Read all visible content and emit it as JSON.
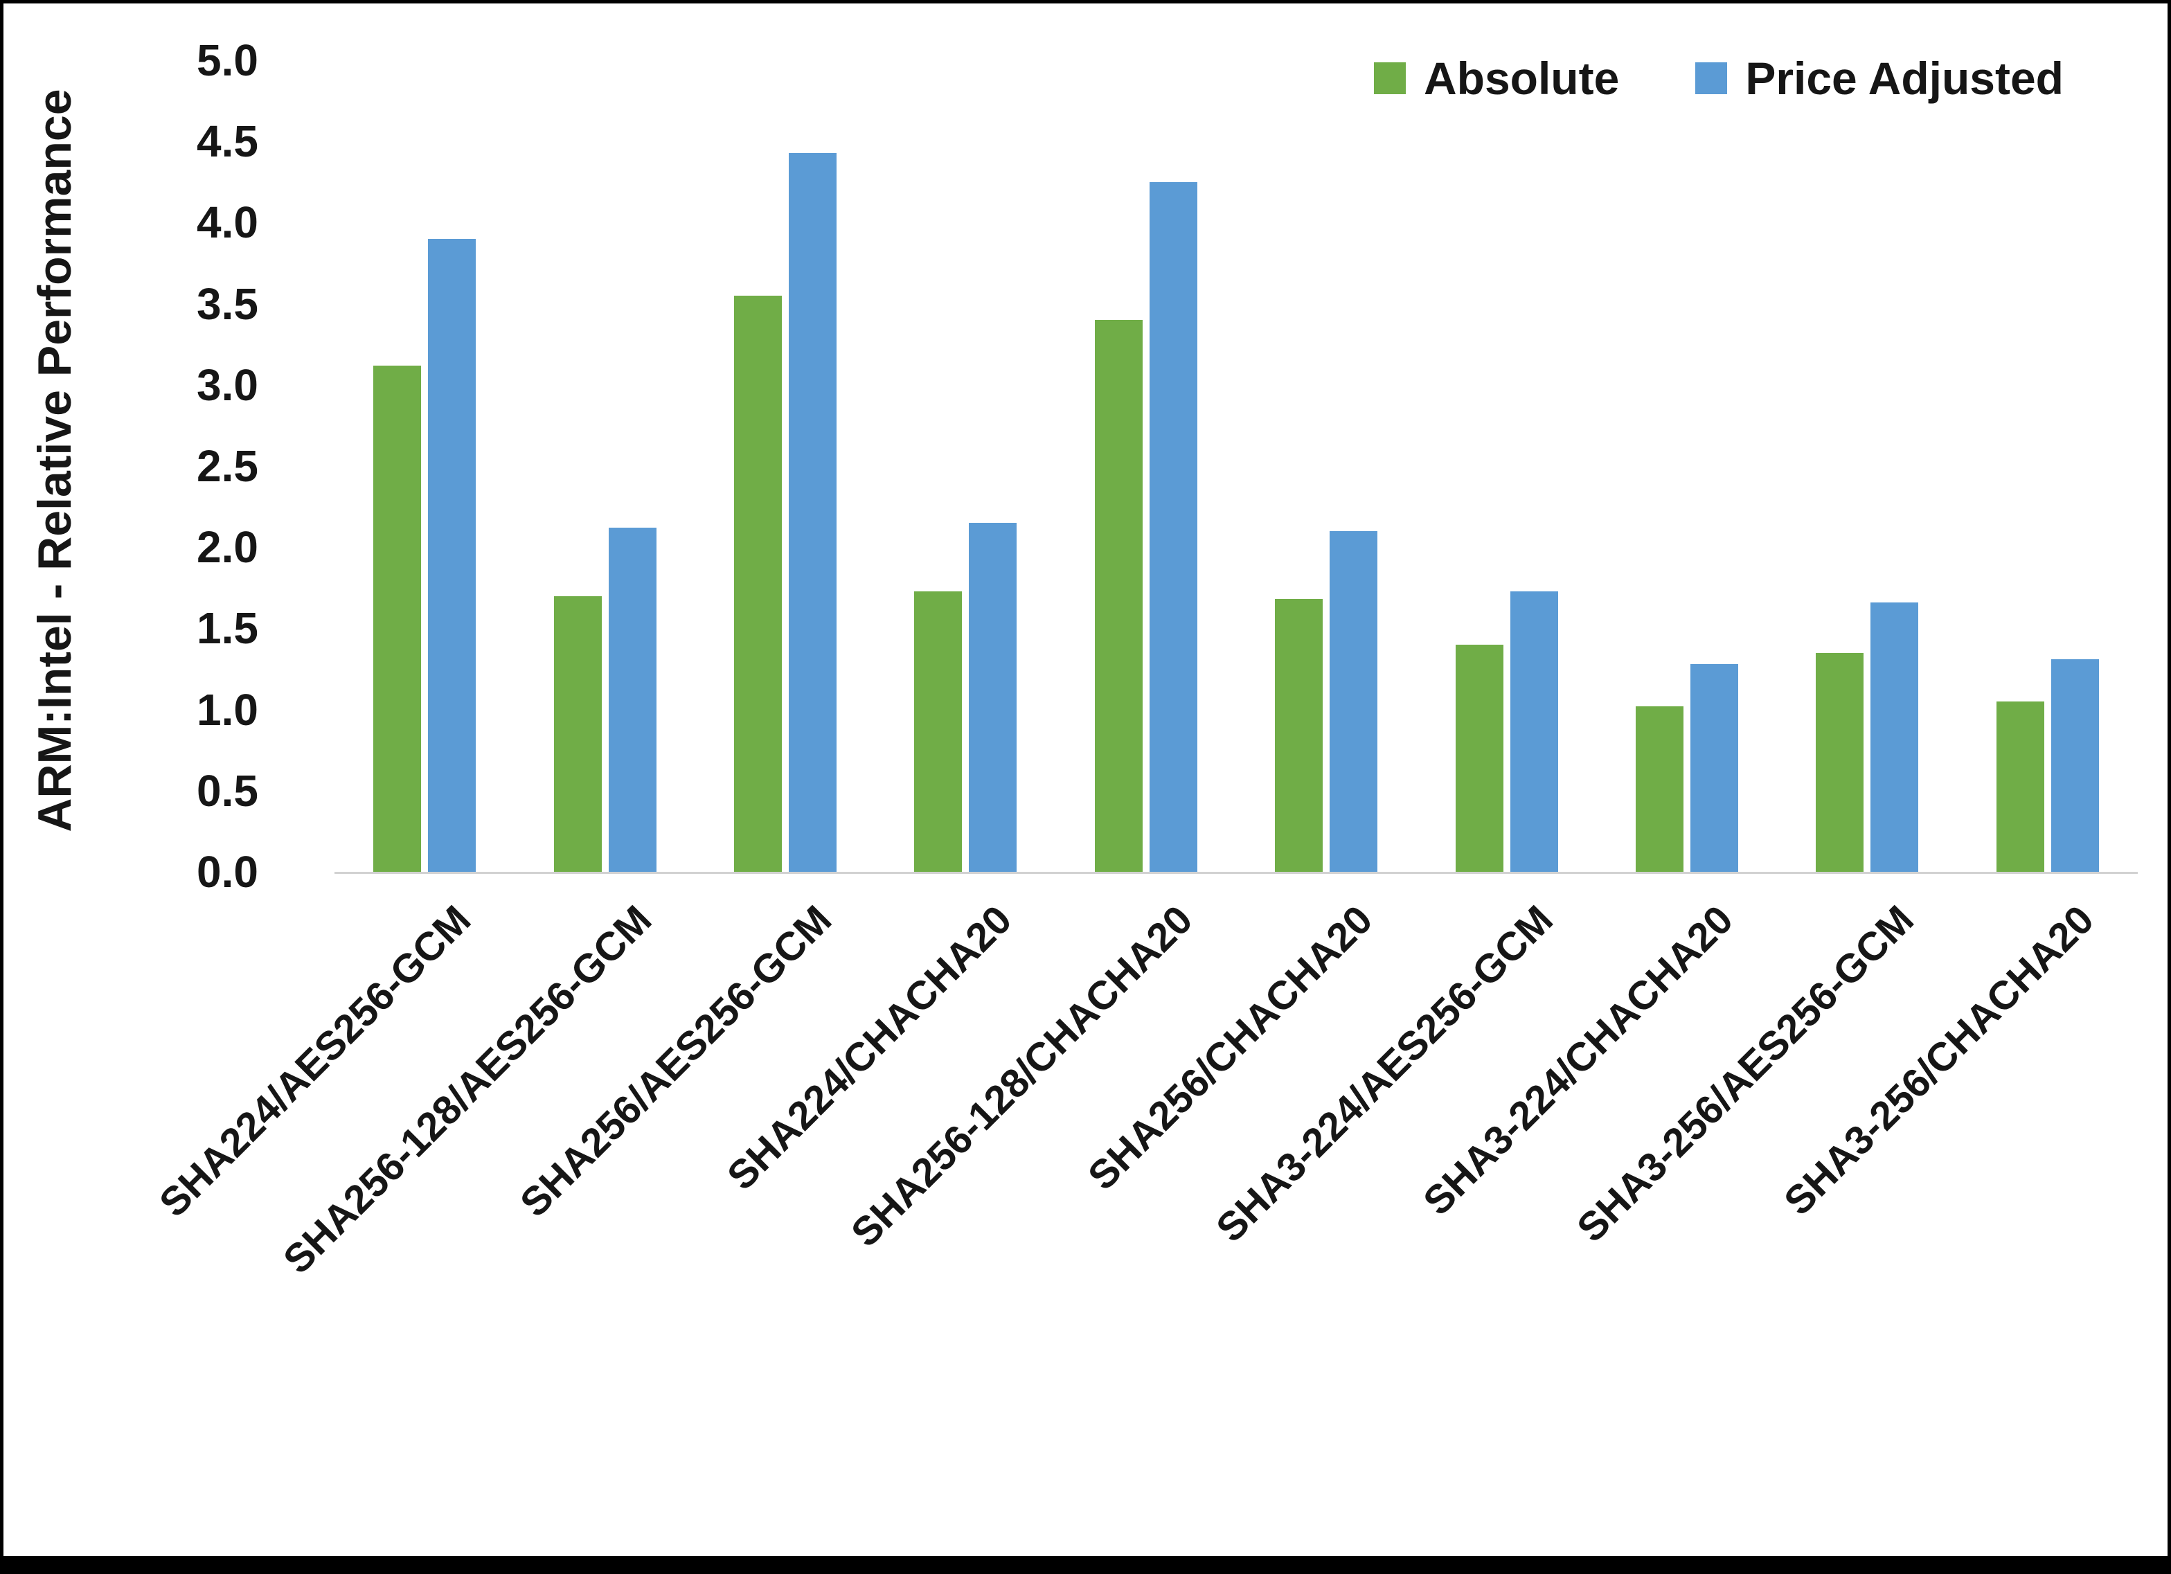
{
  "chart_data": {
    "type": "bar",
    "title": "",
    "xlabel": "",
    "ylabel": "ARM:Intel - Relative Performance",
    "ylim": [
      0,
      5
    ],
    "ytick_step": 0.5,
    "ytick_format_decimals": 1,
    "grid": false,
    "legend_position": "top-right",
    "axis_line_color": "#d2d2d2",
    "categories": [
      "SHA224/AES256-GCM",
      "SHA256-128/AES256-GCM",
      "SHA256/AES256-GCM",
      "SHA224/CHACHA20",
      "SHA256-128/CHACHA20",
      "SHA256/CHACHA20",
      "SHA3-224/AES256-GCM",
      "SHA3-224/CHACHA20",
      "SHA3-256/AES256-GCM",
      "SHA3-256/CHACHA20"
    ],
    "series": [
      {
        "name": "Absolute",
        "color": "#70AD47",
        "values": [
          3.12,
          1.7,
          3.55,
          1.73,
          3.4,
          1.68,
          1.4,
          1.02,
          1.35,
          1.05
        ]
      },
      {
        "name": "Price Adjusted",
        "color": "#5B9BD5",
        "values": [
          3.9,
          2.12,
          4.43,
          2.15,
          4.25,
          2.1,
          1.73,
          1.28,
          1.66,
          1.31
        ]
      }
    ]
  }
}
